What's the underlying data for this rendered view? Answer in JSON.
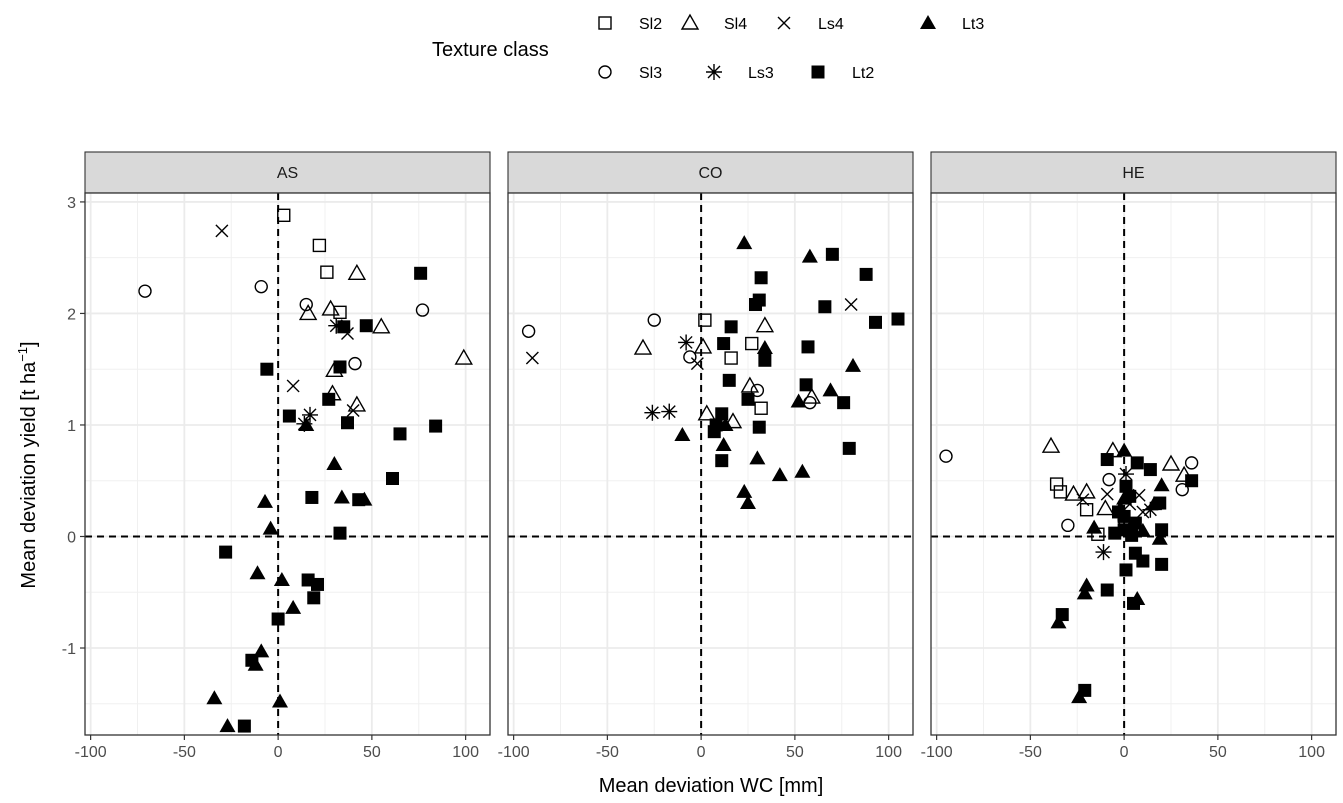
{
  "chart_data": {
    "type": "scatter",
    "legend": {
      "title": "Texture class",
      "position": "top",
      "entries": [
        {
          "name": "Sl2",
          "shape": "square-open"
        },
        {
          "name": "Sl4",
          "shape": "triangle-open"
        },
        {
          "name": "Ls4",
          "shape": "cross"
        },
        {
          "name": "Lt3",
          "shape": "triangle-filled"
        },
        {
          "name": "Sl3",
          "shape": "circle-open"
        },
        {
          "name": "Ls3",
          "shape": "asterisk"
        },
        {
          "name": "Lt2",
          "shape": "square-filled"
        }
      ]
    },
    "xlabel": "Mean deviation WC [mm]",
    "ylabel_main": "Mean deviation yield [t ha",
    "ylabel_sup": "−1",
    "ylabel_end": "]",
    "xlim": [
      -103,
      113
    ],
    "ylim": [
      -1.78,
      3.08
    ],
    "x_ticks": [
      -100,
      -50,
      0,
      50,
      100
    ],
    "x_tick_labels": [
      "-100",
      "-50",
      "0",
      "50",
      "100"
    ],
    "y_ticks": [
      3,
      2,
      1,
      0,
      -1
    ],
    "y_tick_labels": [
      "3",
      "2",
      "1",
      "0",
      "-1"
    ],
    "reference_lines": {
      "x": 0,
      "y": 0
    },
    "grid": true,
    "panels": [
      {
        "label": "AS",
        "points": [
          {
            "s": "Sl2",
            "x": 3,
            "y": 2.88
          },
          {
            "s": "Sl2",
            "x": 22,
            "y": 2.61
          },
          {
            "s": "Sl2",
            "x": 26,
            "y": 2.37
          },
          {
            "s": "Sl2",
            "x": 33,
            "y": 2.01
          },
          {
            "s": "Sl4",
            "x": 42,
            "y": 2.36
          },
          {
            "s": "Sl4",
            "x": 28,
            "y": 2.04
          },
          {
            "s": "Sl4",
            "x": 16,
            "y": 2.0
          },
          {
            "s": "Sl4",
            "x": 55,
            "y": 1.88
          },
          {
            "s": "Sl4",
            "x": 99,
            "y": 1.6
          },
          {
            "s": "Sl4",
            "x": 30,
            "y": 1.49
          },
          {
            "s": "Sl4",
            "x": 29,
            "y": 1.28
          },
          {
            "s": "Sl4",
            "x": 42,
            "y": 1.18
          },
          {
            "s": "Ls4",
            "x": -30,
            "y": 2.74
          },
          {
            "s": "Ls4",
            "x": 8,
            "y": 1.35
          },
          {
            "s": "Ls4",
            "x": 37,
            "y": 1.82
          },
          {
            "s": "Ls4",
            "x": 40,
            "y": 1.13
          },
          {
            "s": "Sl3",
            "x": -71,
            "y": 2.2
          },
          {
            "s": "Sl3",
            "x": -9,
            "y": 2.24
          },
          {
            "s": "Sl3",
            "x": 15,
            "y": 2.08
          },
          {
            "s": "Sl3",
            "x": 77,
            "y": 2.03
          },
          {
            "s": "Sl3",
            "x": 41,
            "y": 1.55
          },
          {
            "s": "Ls3",
            "x": 31,
            "y": 1.89
          },
          {
            "s": "Ls3",
            "x": 17,
            "y": 1.09
          },
          {
            "s": "Ls3",
            "x": 14,
            "y": 1.01
          },
          {
            "s": "Lt2",
            "x": 76,
            "y": 2.36
          },
          {
            "s": "Lt2",
            "x": 35,
            "y": 1.88
          },
          {
            "s": "Lt2",
            "x": 47,
            "y": 1.89
          },
          {
            "s": "Lt2",
            "x": 33,
            "y": 1.52
          },
          {
            "s": "Lt2",
            "x": -6,
            "y": 1.5
          },
          {
            "s": "Lt2",
            "x": 27,
            "y": 1.23
          },
          {
            "s": "Lt2",
            "x": 6,
            "y": 1.08
          },
          {
            "s": "Lt2",
            "x": 37,
            "y": 1.02
          },
          {
            "s": "Lt2",
            "x": 84,
            "y": 0.99
          },
          {
            "s": "Lt2",
            "x": 65,
            "y": 0.92
          },
          {
            "s": "Lt2",
            "x": 61,
            "y": 0.52
          },
          {
            "s": "Lt2",
            "x": 18,
            "y": 0.35
          },
          {
            "s": "Lt2",
            "x": 43,
            "y": 0.33
          },
          {
            "s": "Lt2",
            "x": 33,
            "y": 0.03
          },
          {
            "s": "Lt2",
            "x": -28,
            "y": -0.14
          },
          {
            "s": "Lt2",
            "x": 16,
            "y": -0.39
          },
          {
            "s": "Lt2",
            "x": 21,
            "y": -0.43
          },
          {
            "s": "Lt2",
            "x": 19,
            "y": -0.55
          },
          {
            "s": "Lt2",
            "x": 0,
            "y": -0.74
          },
          {
            "s": "Lt2",
            "x": -14,
            "y": -1.11
          },
          {
            "s": "Lt2",
            "x": -18,
            "y": -1.7
          },
          {
            "s": "Lt3",
            "x": 15,
            "y": 1.0
          },
          {
            "s": "Lt3",
            "x": 30,
            "y": 0.65
          },
          {
            "s": "Lt3",
            "x": 34,
            "y": 0.35
          },
          {
            "s": "Lt3",
            "x": 46,
            "y": 0.33
          },
          {
            "s": "Lt3",
            "x": -7,
            "y": 0.31
          },
          {
            "s": "Lt3",
            "x": -4,
            "y": 0.07
          },
          {
            "s": "Lt3",
            "x": -11,
            "y": -0.33
          },
          {
            "s": "Lt3",
            "x": 2,
            "y": -0.39
          },
          {
            "s": "Lt3",
            "x": 8,
            "y": -0.64
          },
          {
            "s": "Lt3",
            "x": -9,
            "y": -1.03
          },
          {
            "s": "Lt3",
            "x": -12,
            "y": -1.15
          },
          {
            "s": "Lt3",
            "x": 1,
            "y": -1.48
          },
          {
            "s": "Lt3",
            "x": -34,
            "y": -1.45
          },
          {
            "s": "Lt3",
            "x": -27,
            "y": -1.7
          }
        ]
      },
      {
        "label": "CO",
        "points": [
          {
            "s": "Sl2",
            "x": 2,
            "y": 1.94
          },
          {
            "s": "Sl2",
            "x": 27,
            "y": 1.73
          },
          {
            "s": "Sl2",
            "x": 16,
            "y": 1.6
          },
          {
            "s": "Sl2",
            "x": 32,
            "y": 1.15
          },
          {
            "s": "Sl4",
            "x": -31,
            "y": 1.69
          },
          {
            "s": "Sl4",
            "x": 1,
            "y": 1.7
          },
          {
            "s": "Sl4",
            "x": 34,
            "y": 1.89
          },
          {
            "s": "Sl4",
            "x": 26,
            "y": 1.35
          },
          {
            "s": "Sl4",
            "x": 59,
            "y": 1.25
          },
          {
            "s": "Sl4",
            "x": 3,
            "y": 1.1
          },
          {
            "s": "Sl4",
            "x": 17,
            "y": 1.03
          },
          {
            "s": "Ls4",
            "x": -90,
            "y": 1.6
          },
          {
            "s": "Ls4",
            "x": -2,
            "y": 1.55
          },
          {
            "s": "Ls4",
            "x": 80,
            "y": 2.08
          },
          {
            "s": "Sl3",
            "x": -92,
            "y": 1.84
          },
          {
            "s": "Sl3",
            "x": -25,
            "y": 1.94
          },
          {
            "s": "Sl3",
            "x": -6,
            "y": 1.61
          },
          {
            "s": "Sl3",
            "x": 30,
            "y": 1.31
          },
          {
            "s": "Sl3",
            "x": 58,
            "y": 1.2
          },
          {
            "s": "Ls3",
            "x": -8,
            "y": 1.74
          },
          {
            "s": "Ls3",
            "x": -26,
            "y": 1.11
          },
          {
            "s": "Ls3",
            "x": -17,
            "y": 1.12
          },
          {
            "s": "Lt2",
            "x": 70,
            "y": 2.53
          },
          {
            "s": "Lt2",
            "x": 88,
            "y": 2.35
          },
          {
            "s": "Lt2",
            "x": 32,
            "y": 2.32
          },
          {
            "s": "Lt2",
            "x": 31,
            "y": 2.12
          },
          {
            "s": "Lt2",
            "x": 29,
            "y": 2.08
          },
          {
            "s": "Lt2",
            "x": 66,
            "y": 2.06
          },
          {
            "s": "Lt2",
            "x": 105,
            "y": 1.95
          },
          {
            "s": "Lt2",
            "x": 93,
            "y": 1.92
          },
          {
            "s": "Lt2",
            "x": 16,
            "y": 1.88
          },
          {
            "s": "Lt2",
            "x": 12,
            "y": 1.73
          },
          {
            "s": "Lt2",
            "x": 57,
            "y": 1.7
          },
          {
            "s": "Lt2",
            "x": 34,
            "y": 1.58
          },
          {
            "s": "Lt2",
            "x": 15,
            "y": 1.4
          },
          {
            "s": "Lt2",
            "x": 56,
            "y": 1.36
          },
          {
            "s": "Lt2",
            "x": 25,
            "y": 1.23
          },
          {
            "s": "Lt2",
            "x": 76,
            "y": 1.2
          },
          {
            "s": "Lt2",
            "x": 11,
            "y": 1.1
          },
          {
            "s": "Lt2",
            "x": 31,
            "y": 0.98
          },
          {
            "s": "Lt2",
            "x": 7,
            "y": 0.94
          },
          {
            "s": "Lt2",
            "x": 79,
            "y": 0.79
          },
          {
            "s": "Lt2",
            "x": 11,
            "y": 0.68
          },
          {
            "s": "Lt2",
            "x": 8,
            "y": 1.0
          },
          {
            "s": "Lt3",
            "x": 23,
            "y": 2.63
          },
          {
            "s": "Lt3",
            "x": 58,
            "y": 2.51
          },
          {
            "s": "Lt3",
            "x": 34,
            "y": 1.69
          },
          {
            "s": "Lt3",
            "x": 81,
            "y": 1.53
          },
          {
            "s": "Lt3",
            "x": 69,
            "y": 1.31
          },
          {
            "s": "Lt3",
            "x": 52,
            "y": 1.21
          },
          {
            "s": "Lt3",
            "x": 13,
            "y": 1.0
          },
          {
            "s": "Lt3",
            "x": -10,
            "y": 0.91
          },
          {
            "s": "Lt3",
            "x": 12,
            "y": 0.82
          },
          {
            "s": "Lt3",
            "x": 30,
            "y": 0.7
          },
          {
            "s": "Lt3",
            "x": 54,
            "y": 0.58
          },
          {
            "s": "Lt3",
            "x": 42,
            "y": 0.55
          },
          {
            "s": "Lt3",
            "x": 23,
            "y": 0.4
          },
          {
            "s": "Lt3",
            "x": 25,
            "y": 0.3
          }
        ]
      },
      {
        "label": "HE",
        "points": [
          {
            "s": "Sl2",
            "x": -36,
            "y": 0.47
          },
          {
            "s": "Sl2",
            "x": -34,
            "y": 0.4
          },
          {
            "s": "Sl2",
            "x": -20,
            "y": 0.24
          },
          {
            "s": "Sl2",
            "x": -14,
            "y": 0.02
          },
          {
            "s": "Sl4",
            "x": -39,
            "y": 0.81
          },
          {
            "s": "Sl4",
            "x": -6,
            "y": 0.77
          },
          {
            "s": "Sl4",
            "x": 25,
            "y": 0.65
          },
          {
            "s": "Sl4",
            "x": -20,
            "y": 0.4
          },
          {
            "s": "Sl4",
            "x": -27,
            "y": 0.38
          },
          {
            "s": "Sl4",
            "x": -10,
            "y": 0.25
          },
          {
            "s": "Sl4",
            "x": 32,
            "y": 0.55
          },
          {
            "s": "Ls4",
            "x": -9,
            "y": 0.38
          },
          {
            "s": "Ls4",
            "x": 8,
            "y": 0.37
          },
          {
            "s": "Ls4",
            "x": 10,
            "y": 0.22
          },
          {
            "s": "Ls4",
            "x": 3,
            "y": 0.29
          },
          {
            "s": "Ls4",
            "x": -22,
            "y": 0.33
          },
          {
            "s": "Sl3",
            "x": -95,
            "y": 0.72
          },
          {
            "s": "Sl3",
            "x": 36,
            "y": 0.66
          },
          {
            "s": "Sl3",
            "x": -8,
            "y": 0.51
          },
          {
            "s": "Sl3",
            "x": 31,
            "y": 0.42
          },
          {
            "s": "Sl3",
            "x": -30,
            "y": 0.1
          },
          {
            "s": "Sl3",
            "x": 0,
            "y": 0.15
          },
          {
            "s": "Ls3",
            "x": 1,
            "y": 0.56
          },
          {
            "s": "Ls3",
            "x": 14,
            "y": 0.24
          },
          {
            "s": "Ls3",
            "x": -11,
            "y": -0.14
          },
          {
            "s": "Lt2",
            "x": -9,
            "y": 0.69
          },
          {
            "s": "Lt2",
            "x": 7,
            "y": 0.66
          },
          {
            "s": "Lt2",
            "x": 14,
            "y": 0.6
          },
          {
            "s": "Lt2",
            "x": 36,
            "y": 0.5
          },
          {
            "s": "Lt2",
            "x": 1,
            "y": 0.45
          },
          {
            "s": "Lt2",
            "x": 3,
            "y": 0.36
          },
          {
            "s": "Lt2",
            "x": 19,
            "y": 0.3
          },
          {
            "s": "Lt2",
            "x": -3,
            "y": 0.22
          },
          {
            "s": "Lt2",
            "x": 0,
            "y": 0.18
          },
          {
            "s": "Lt2",
            "x": 6,
            "y": 0.12
          },
          {
            "s": "Lt2",
            "x": 0,
            "y": 0.06
          },
          {
            "s": "Lt2",
            "x": 20,
            "y": 0.06
          },
          {
            "s": "Lt2",
            "x": -5,
            "y": 0.03
          },
          {
            "s": "Lt2",
            "x": 4,
            "y": 0.01
          },
          {
            "s": "Lt2",
            "x": 6,
            "y": -0.15
          },
          {
            "s": "Lt2",
            "x": 10,
            "y": -0.22
          },
          {
            "s": "Lt2",
            "x": 20,
            "y": -0.25
          },
          {
            "s": "Lt2",
            "x": 1,
            "y": -0.3
          },
          {
            "s": "Lt2",
            "x": -9,
            "y": -0.48
          },
          {
            "s": "Lt2",
            "x": 5,
            "y": -0.6
          },
          {
            "s": "Lt2",
            "x": -33,
            "y": -0.7
          },
          {
            "s": "Lt2",
            "x": -21,
            "y": -1.38
          },
          {
            "s": "Lt3",
            "x": 0,
            "y": 0.77
          },
          {
            "s": "Lt3",
            "x": 20,
            "y": 0.46
          },
          {
            "s": "Lt3",
            "x": 0,
            "y": 0.34
          },
          {
            "s": "Lt3",
            "x": 16,
            "y": 0.29
          },
          {
            "s": "Lt3",
            "x": -2,
            "y": 0.25
          },
          {
            "s": "Lt3",
            "x": -16,
            "y": 0.08
          },
          {
            "s": "Lt3",
            "x": 10,
            "y": 0.05
          },
          {
            "s": "Lt3",
            "x": 19,
            "y": -0.02
          },
          {
            "s": "Lt3",
            "x": -20,
            "y": -0.44
          },
          {
            "s": "Lt3",
            "x": -21,
            "y": -0.51
          },
          {
            "s": "Lt3",
            "x": 7,
            "y": -0.56
          },
          {
            "s": "Lt3",
            "x": -35,
            "y": -0.77
          },
          {
            "s": "Lt3",
            "x": -24,
            "y": -1.44
          }
        ]
      }
    ]
  }
}
